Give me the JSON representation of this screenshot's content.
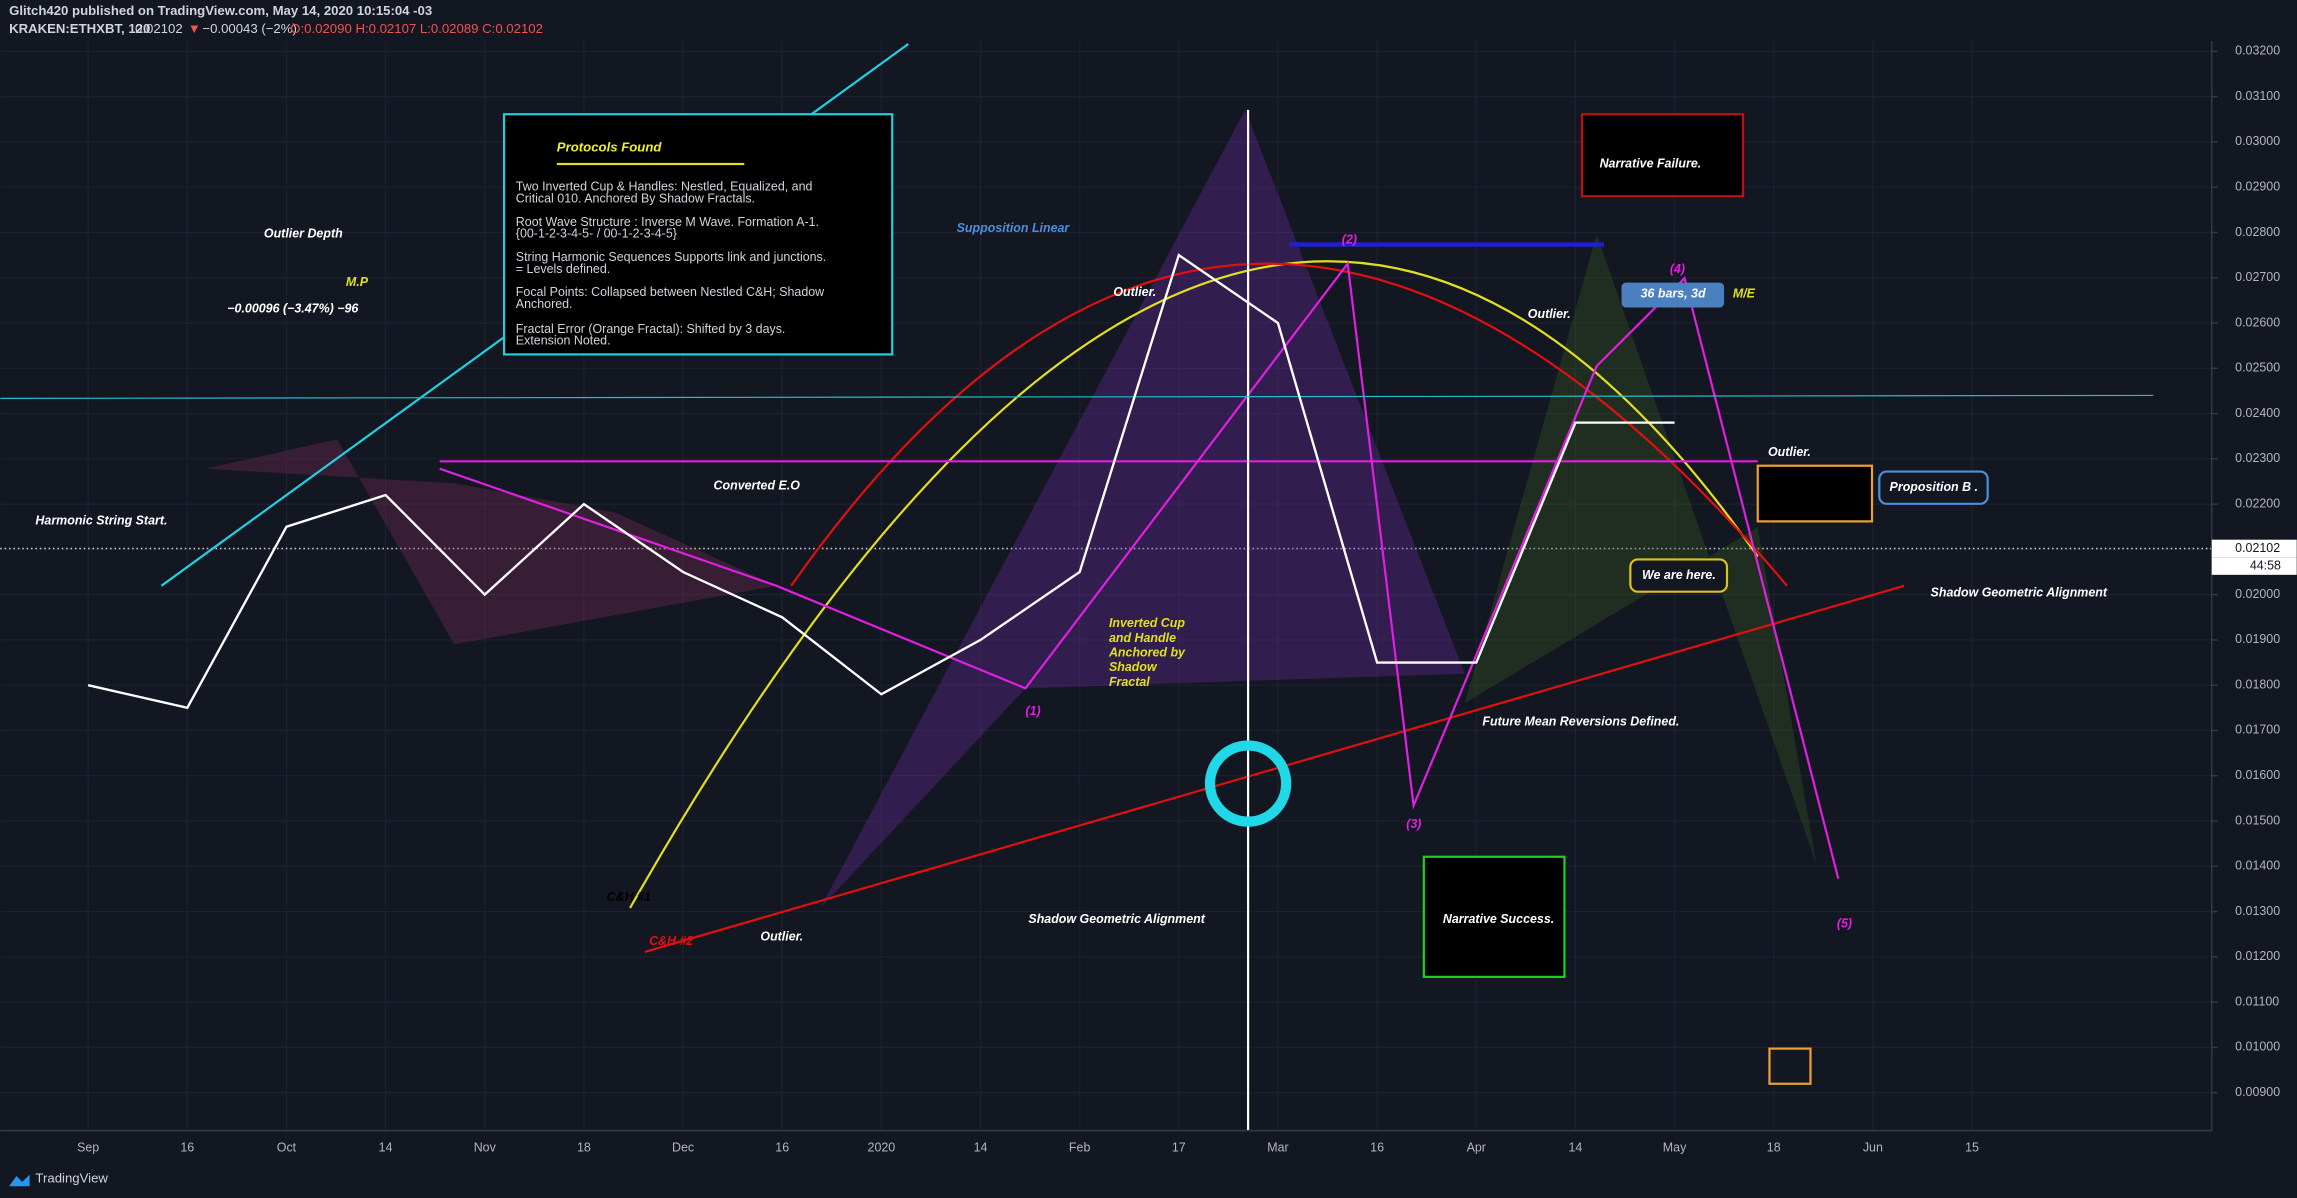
{
  "header": {
    "publisher": "Glitch420 published on TradingView.com, May 14, 2020 10:15:04 -03",
    "symbol": "KRAKEN:ETHXBT, 120",
    "last": "0.02102",
    "change": "−0.00043 (−2%)",
    "ohlc": "O:0.02090 H:0.02107 L:0.02089 C:0.02102"
  },
  "chart_data": {
    "type": "line",
    "categories": [
      "Sep",
      "16",
      "Oct",
      "14",
      "Nov",
      "18",
      "Dec",
      "16",
      "2020",
      "14",
      "Feb",
      "17",
      "Mar",
      "16",
      "Apr",
      "14",
      "May",
      "18",
      "Jun",
      "15"
    ],
    "series": [
      {
        "name": "ETHXBT",
        "color": "#ffffff",
        "values": [
          0.018,
          0.0175,
          0.0215,
          0.0222,
          0.02,
          0.022,
          0.0205,
          0.0195,
          0.0178,
          0.019,
          0.0205,
          0.0275,
          0.026,
          0.0185,
          0.0185,
          0.0238,
          0.0238,
          null,
          null,
          null
        ]
      }
    ],
    "ylim": [
      0.00816,
      0.03223
    ],
    "yticks": [
      {
        "value": 0.009,
        "label": "0.00900"
      },
      {
        "value": 0.01,
        "label": "0.01000"
      },
      {
        "value": 0.011,
        "label": "0.01100"
      },
      {
        "value": 0.012,
        "label": "0.01200"
      },
      {
        "value": 0.013,
        "label": "0.01300"
      },
      {
        "value": 0.014,
        "label": "0.01400"
      },
      {
        "value": 0.015,
        "label": "0.01500"
      },
      {
        "value": 0.016,
        "label": "0.01600"
      },
      {
        "value": 0.017,
        "label": "0.01700"
      },
      {
        "value": 0.018,
        "label": "0.01800"
      },
      {
        "value": 0.019,
        "label": "0.01900"
      },
      {
        "value": 0.02,
        "label": "0.02000"
      },
      {
        "value": 0.021,
        "label": "0.02100"
      },
      {
        "value": 0.022,
        "label": "0.02200"
      },
      {
        "value": 0.023,
        "label": "0.02300"
      },
      {
        "value": 0.024,
        "label": "0.02400"
      },
      {
        "value": 0.025,
        "label": "0.02500"
      },
      {
        "value": 0.026,
        "label": "0.02600"
      },
      {
        "value": 0.027,
        "label": "0.02700"
      },
      {
        "value": 0.028,
        "label": "0.02800"
      },
      {
        "value": 0.029,
        "label": "0.02900"
      },
      {
        "value": 0.03,
        "label": "0.03000"
      },
      {
        "value": 0.031,
        "label": "0.03100"
      },
      {
        "value": 0.032,
        "label": "0.03200"
      }
    ],
    "grid": true,
    "current_price": {
      "value": 0.02102,
      "label": "0.02102"
    },
    "countdown": "44:58"
  },
  "protocols": {
    "title": "Protocols Found",
    "lines": [
      "Two Inverted Cup & Handles: Nestled, Equalized, and",
      "Critical 010. Anchored By Shadow Fractals.",
      "Root Wave Structure : Inverse M Wave. Formation A-1.",
      "{00-1-2-3-4-5- / 00-1-2-3-4-5}",
      "String Harmonic Sequences Supports link and junctions.",
      "= Levels defined.",
      "Focal Points: Collapsed between Nestled C&H; Shadow",
      "Anchored.",
      "Fractal Error (Orange Fractal): Shifted by 3 days.",
      "Extension Noted."
    ]
  },
  "annotations": [
    "Outlier Depth",
    "M.P",
    "−0.00096 (−3.47%) −96",
    "Harmonic String Start.",
    "Converted E.O",
    "Supposition Linear",
    "Outlier.",
    "Narrative Failure.",
    "Outlier.",
    "36 bars, 3d",
    "M/E",
    "Outlier.",
    "Proposition B .",
    "We are here.",
    "Shadow Geometric Alignment",
    "Inverted Cup",
    "and Handle",
    "Anchored by",
    "Shadow",
    "Fractal",
    "Future Mean Reversions Defined.",
    "C&H #1",
    "C&H #2",
    "Outlier.",
    "Shadow Geometric Alignment",
    "Narrative Success.",
    "(1)",
    "(2)",
    "(3)",
    "(4)",
    "(5)"
  ],
  "footer": "TradingView"
}
